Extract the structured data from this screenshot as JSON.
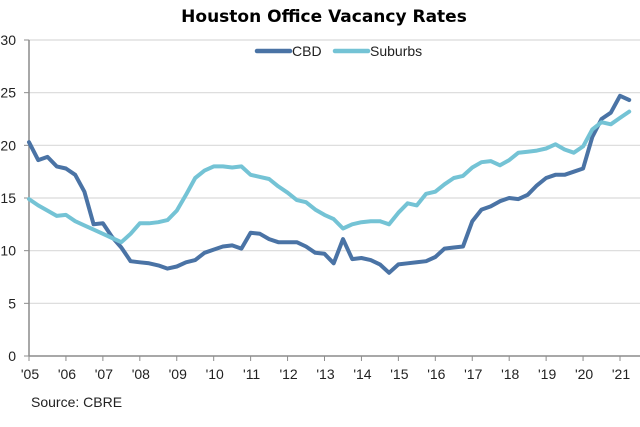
{
  "chart_data": {
    "type": "line",
    "title": "Houston Office Vacancy Rates",
    "xlabel": "",
    "ylabel": "",
    "source": "Source: CBRE",
    "ylim": [
      0,
      30
    ],
    "yticks": [
      0,
      5,
      10,
      15,
      20,
      25,
      30
    ],
    "xlim": [
      2005,
      2021.4
    ],
    "xticks": [
      2005,
      2006,
      2007,
      2008,
      2009,
      2010,
      2011,
      2012,
      2013,
      2014,
      2015,
      2016,
      2017,
      2018,
      2019,
      2020,
      2021
    ],
    "xtick_labels": [
      "'05",
      "'06",
      "'07",
      "'08",
      "'09",
      "'10",
      "'11",
      "'12",
      "'13",
      "'14",
      "'15",
      "'16",
      "'17",
      "'18",
      "'19",
      "'20",
      "'21"
    ],
    "grid": true,
    "legend": "top-center",
    "x_start": 2005,
    "x_step": 0.25,
    "series": [
      {
        "name": "CBD",
        "color": "#4a73a5",
        "values": [
          20.3,
          18.6,
          18.9,
          18.0,
          17.8,
          17.2,
          15.6,
          12.5,
          12.6,
          11.3,
          10.3,
          9.0,
          8.9,
          8.8,
          8.6,
          8.3,
          8.5,
          8.9,
          9.1,
          9.8,
          10.1,
          10.4,
          10.5,
          10.2,
          11.7,
          11.6,
          11.1,
          10.8,
          10.8,
          10.8,
          10.4,
          9.8,
          9.7,
          8.8,
          11.1,
          9.2,
          9.3,
          9.1,
          8.7,
          7.9,
          8.7,
          8.8,
          8.9,
          9.0,
          9.4,
          10.2,
          10.3,
          10.4,
          12.8,
          13.9,
          14.2,
          14.7,
          15.0,
          14.9,
          15.3,
          16.2,
          16.9,
          17.2,
          17.2,
          17.5,
          17.8,
          20.8,
          22.5,
          23.1,
          24.7,
          24.3
        ]
      },
      {
        "name": "Suburbs",
        "color": "#74c3d5",
        "values": [
          14.9,
          14.3,
          13.8,
          13.3,
          13.4,
          12.8,
          12.4,
          12.0,
          11.6,
          11.2,
          10.8,
          11.6,
          12.6,
          12.6,
          12.7,
          12.9,
          13.8,
          15.3,
          16.9,
          17.6,
          18.0,
          18.0,
          17.9,
          18.0,
          17.2,
          17.0,
          16.8,
          16.1,
          15.5,
          14.8,
          14.6,
          13.9,
          13.4,
          13.0,
          12.1,
          12.5,
          12.7,
          12.8,
          12.8,
          12.5,
          13.6,
          14.5,
          14.3,
          15.4,
          15.6,
          16.3,
          16.9,
          17.1,
          17.9,
          18.4,
          18.5,
          18.1,
          18.6,
          19.3,
          19.4,
          19.5,
          19.7,
          20.1,
          19.6,
          19.3,
          19.9,
          21.5,
          22.2,
          22.0,
          22.6,
          23.2
        ]
      }
    ],
    "colors": {
      "grid": "#d9d9d9",
      "axis": "#8c8c8c"
    }
  }
}
